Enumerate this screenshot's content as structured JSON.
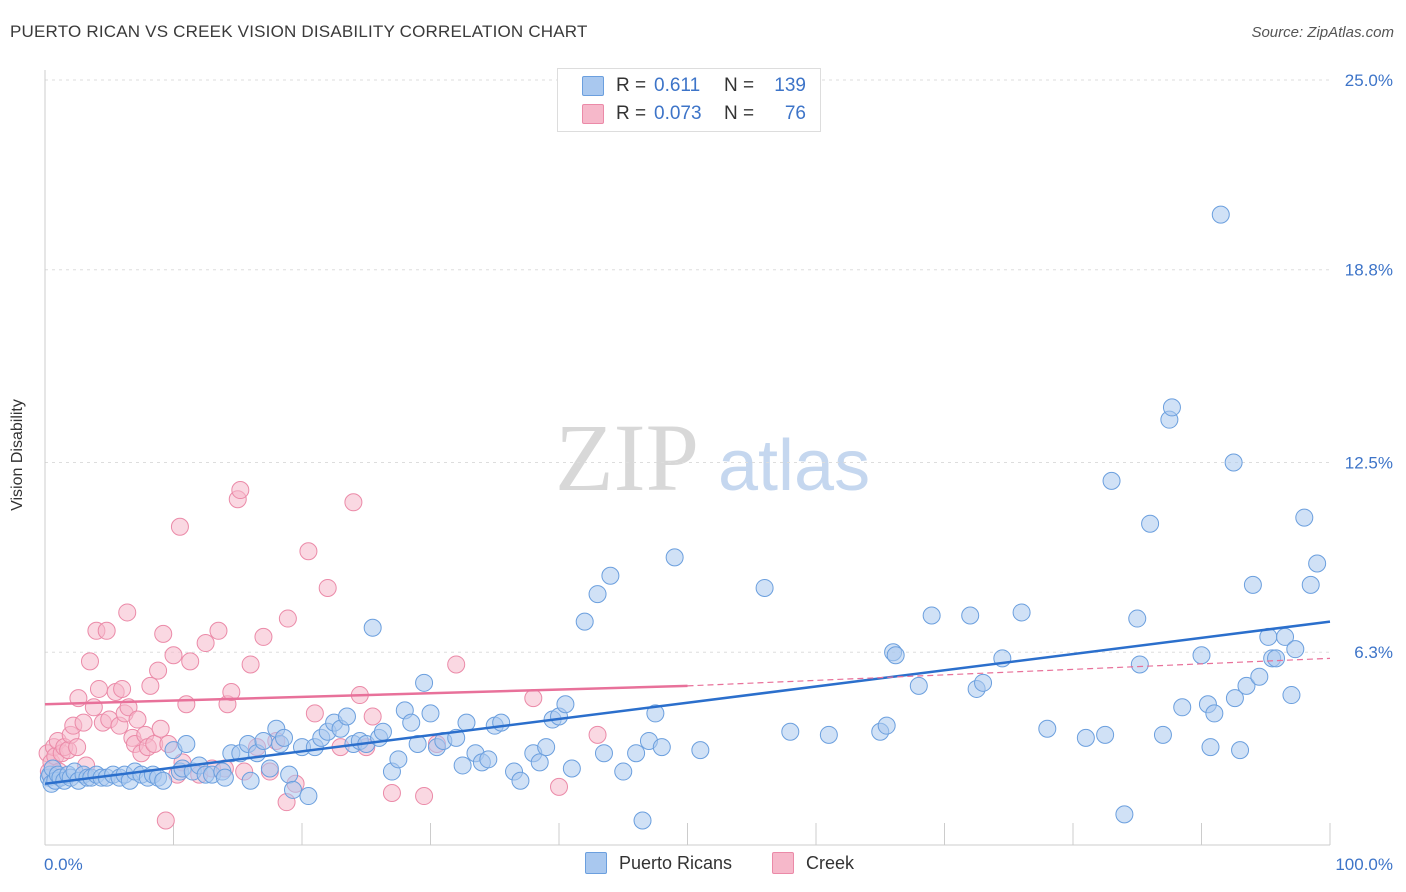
{
  "title": "PUERTO RICAN VS CREEK VISION DISABILITY CORRELATION CHART",
  "source": "Source: ZipAtlas.com",
  "watermark": {
    "zip": "ZIP",
    "atlas": "atlas"
  },
  "legend": {
    "rows": [
      {
        "r_label": "R =",
        "r_value": "0.611",
        "n_label": "N =",
        "n_value": "139"
      },
      {
        "r_label": "R =",
        "r_value": "0.073",
        "n_label": "N =",
        "n_value": "76"
      }
    ]
  },
  "bottom_legend": [
    "Puerto Ricans",
    "Creek"
  ],
  "colors": {
    "blue_fill": "#a9c8ef",
    "blue_stroke": "#6b9fde",
    "blue_line": "#2b6fcc",
    "pink_fill": "#f6b8ca",
    "pink_stroke": "#eb8aa8",
    "pink_line": "#e8719a",
    "axis_text": "#3d74c8"
  },
  "chart_data": {
    "type": "scatter",
    "ylabel": "Vision Disability",
    "xlim": [
      0,
      100
    ],
    "ylim": [
      0,
      25
    ],
    "x_tick_labels": [
      "0.0%",
      "100.0%"
    ],
    "y_ticks": [
      6.3,
      12.5,
      18.8,
      25.0
    ],
    "y_tick_labels": [
      "6.3%",
      "12.5%",
      "18.8%",
      "25.0%"
    ],
    "grid": "horizontal dashed",
    "series": [
      {
        "name": "Puerto Ricans",
        "color": "#6b9fde",
        "trend": {
          "x": [
            0,
            100
          ],
          "y": [
            2.0,
            7.3
          ]
        },
        "points": [
          [
            0.3,
            2.2
          ],
          [
            0.4,
            2.3
          ],
          [
            0.5,
            2.0
          ],
          [
            0.6,
            2.5
          ],
          [
            0.8,
            2.1
          ],
          [
            1.0,
            2.3
          ],
          [
            1.2,
            2.2
          ],
          [
            1.5,
            2.1
          ],
          [
            1.8,
            2.3
          ],
          [
            2.0,
            2.2
          ],
          [
            2.3,
            2.4
          ],
          [
            2.6,
            2.1
          ],
          [
            3.0,
            2.3
          ],
          [
            3.3,
            2.2
          ],
          [
            3.6,
            2.2
          ],
          [
            4.0,
            2.3
          ],
          [
            4.4,
            2.2
          ],
          [
            4.8,
            2.2
          ],
          [
            5.3,
            2.3
          ],
          [
            5.8,
            2.2
          ],
          [
            6.2,
            2.3
          ],
          [
            6.6,
            2.1
          ],
          [
            7.0,
            2.4
          ],
          [
            7.5,
            2.3
          ],
          [
            8.0,
            2.2
          ],
          [
            8.4,
            2.3
          ],
          [
            8.8,
            2.2
          ],
          [
            9.2,
            2.1
          ],
          [
            10.0,
            3.1
          ],
          [
            10.5,
            2.4
          ],
          [
            10.7,
            2.5
          ],
          [
            11.0,
            3.3
          ],
          [
            11.5,
            2.4
          ],
          [
            12.0,
            2.6
          ],
          [
            12.5,
            2.3
          ],
          [
            13.0,
            2.3
          ],
          [
            13.8,
            2.4
          ],
          [
            14.0,
            2.2
          ],
          [
            14.5,
            3.0
          ],
          [
            15.2,
            3.0
          ],
          [
            15.8,
            3.3
          ],
          [
            16.0,
            2.1
          ],
          [
            16.5,
            3.0
          ],
          [
            17.0,
            3.4
          ],
          [
            17.5,
            2.5
          ],
          [
            18.0,
            3.8
          ],
          [
            18.3,
            3.3
          ],
          [
            18.6,
            3.5
          ],
          [
            19.0,
            2.3
          ],
          [
            19.3,
            1.8
          ],
          [
            20.0,
            3.2
          ],
          [
            20.5,
            1.6
          ],
          [
            21.0,
            3.2
          ],
          [
            21.5,
            3.5
          ],
          [
            22.0,
            3.7
          ],
          [
            22.5,
            4.0
          ],
          [
            23.0,
            3.8
          ],
          [
            23.5,
            4.2
          ],
          [
            24.0,
            3.3
          ],
          [
            24.5,
            3.4
          ],
          [
            25.0,
            3.3
          ],
          [
            25.5,
            7.1
          ],
          [
            26.0,
            3.5
          ],
          [
            26.3,
            3.7
          ],
          [
            27.0,
            2.4
          ],
          [
            27.5,
            2.8
          ],
          [
            28.0,
            4.4
          ],
          [
            28.5,
            4.0
          ],
          [
            29.0,
            3.3
          ],
          [
            29.5,
            5.3
          ],
          [
            30.0,
            4.3
          ],
          [
            30.5,
            3.2
          ],
          [
            31.0,
            3.4
          ],
          [
            32.0,
            3.5
          ],
          [
            32.5,
            2.6
          ],
          [
            32.8,
            4.0
          ],
          [
            33.5,
            3.0
          ],
          [
            34.0,
            2.7
          ],
          [
            34.5,
            2.8
          ],
          [
            35.0,
            3.9
          ],
          [
            35.5,
            4.0
          ],
          [
            36.5,
            2.4
          ],
          [
            37.0,
            2.1
          ],
          [
            38.0,
            3.0
          ],
          [
            38.5,
            2.7
          ],
          [
            39.0,
            3.2
          ],
          [
            39.5,
            4.1
          ],
          [
            40.0,
            4.2
          ],
          [
            40.5,
            4.6
          ],
          [
            41.0,
            2.5
          ],
          [
            42.0,
            7.3
          ],
          [
            43.0,
            8.2
          ],
          [
            43.5,
            3.0
          ],
          [
            44.0,
            8.8
          ],
          [
            45.0,
            2.4
          ],
          [
            46.0,
            3.0
          ],
          [
            46.5,
            0.8
          ],
          [
            47.0,
            3.4
          ],
          [
            47.5,
            4.3
          ],
          [
            48.0,
            3.2
          ],
          [
            49.0,
            9.4
          ],
          [
            51.0,
            3.1
          ],
          [
            56.0,
            8.4
          ],
          [
            58.0,
            3.7
          ],
          [
            61.0,
            3.6
          ],
          [
            65.0,
            3.7
          ],
          [
            65.5,
            3.9
          ],
          [
            66.0,
            6.3
          ],
          [
            66.2,
            6.2
          ],
          [
            68.0,
            5.2
          ],
          [
            69.0,
            7.5
          ],
          [
            72.0,
            7.5
          ],
          [
            72.5,
            5.1
          ],
          [
            73.0,
            5.3
          ],
          [
            74.5,
            6.1
          ],
          [
            76.0,
            7.6
          ],
          [
            78.0,
            3.8
          ],
          [
            81.0,
            3.5
          ],
          [
            82.5,
            3.6
          ],
          [
            83.0,
            11.9
          ],
          [
            84.0,
            1.0
          ],
          [
            85.0,
            7.4
          ],
          [
            85.2,
            5.9
          ],
          [
            86.0,
            10.5
          ],
          [
            87.0,
            3.6
          ],
          [
            87.5,
            13.9
          ],
          [
            87.7,
            14.3
          ],
          [
            88.5,
            4.5
          ],
          [
            90.0,
            6.2
          ],
          [
            90.5,
            4.6
          ],
          [
            90.7,
            3.2
          ],
          [
            91.0,
            4.3
          ],
          [
            91.5,
            20.6
          ],
          [
            92.5,
            12.5
          ],
          [
            92.6,
            4.8
          ],
          [
            93.0,
            3.1
          ],
          [
            93.5,
            5.2
          ],
          [
            94.0,
            8.5
          ],
          [
            94.5,
            5.5
          ],
          [
            95.2,
            6.8
          ],
          [
            95.5,
            6.1
          ],
          [
            95.8,
            6.1
          ],
          [
            96.5,
            6.8
          ],
          [
            97.0,
            4.9
          ],
          [
            97.3,
            6.4
          ],
          [
            98.0,
            10.7
          ],
          [
            98.5,
            8.5
          ],
          [
            99.0,
            9.2
          ]
        ]
      },
      {
        "name": "Creek",
        "color": "#eb8aa8",
        "trend": {
          "x": [
            0,
            50
          ],
          "y": [
            4.6,
            5.2
          ]
        },
        "trend_dashed": {
          "x": [
            50,
            100
          ],
          "y": [
            5.2,
            6.1
          ]
        },
        "points": [
          [
            0.2,
            3.0
          ],
          [
            0.3,
            2.4
          ],
          [
            0.5,
            2.7
          ],
          [
            0.7,
            3.2
          ],
          [
            0.8,
            2.9
          ],
          [
            1.0,
            3.4
          ],
          [
            1.1,
            2.4
          ],
          [
            1.3,
            3.0
          ],
          [
            1.5,
            3.2
          ],
          [
            1.8,
            3.1
          ],
          [
            2.0,
            3.6
          ],
          [
            2.2,
            3.9
          ],
          [
            2.5,
            3.2
          ],
          [
            2.6,
            4.8
          ],
          [
            3.0,
            4.0
          ],
          [
            3.2,
            2.6
          ],
          [
            3.5,
            6.0
          ],
          [
            3.8,
            4.5
          ],
          [
            4.0,
            7.0
          ],
          [
            4.2,
            5.1
          ],
          [
            4.5,
            4.0
          ],
          [
            4.8,
            7.0
          ],
          [
            5.0,
            4.1
          ],
          [
            5.5,
            5.0
          ],
          [
            5.8,
            3.9
          ],
          [
            6.0,
            5.1
          ],
          [
            6.2,
            4.3
          ],
          [
            6.4,
            7.6
          ],
          [
            6.5,
            4.5
          ],
          [
            6.8,
            3.5
          ],
          [
            7.0,
            3.3
          ],
          [
            7.2,
            4.1
          ],
          [
            7.5,
            3.0
          ],
          [
            7.8,
            3.6
          ],
          [
            8.0,
            3.2
          ],
          [
            8.2,
            5.2
          ],
          [
            8.5,
            3.3
          ],
          [
            8.8,
            5.7
          ],
          [
            9.0,
            3.8
          ],
          [
            9.2,
            6.9
          ],
          [
            9.4,
            0.8
          ],
          [
            9.6,
            3.3
          ],
          [
            10.0,
            6.2
          ],
          [
            10.3,
            2.3
          ],
          [
            10.5,
            10.4
          ],
          [
            10.7,
            2.7
          ],
          [
            11.0,
            4.6
          ],
          [
            11.3,
            6.0
          ],
          [
            12.0,
            2.3
          ],
          [
            12.5,
            6.6
          ],
          [
            13.0,
            2.5
          ],
          [
            13.5,
            7.0
          ],
          [
            14.0,
            2.5
          ],
          [
            14.2,
            4.6
          ],
          [
            14.5,
            5.0
          ],
          [
            15.0,
            11.3
          ],
          [
            15.2,
            11.6
          ],
          [
            15.5,
            2.4
          ],
          [
            16.0,
            5.9
          ],
          [
            16.5,
            3.2
          ],
          [
            17.0,
            6.8
          ],
          [
            17.5,
            2.4
          ],
          [
            18.0,
            3.4
          ],
          [
            18.8,
            1.4
          ],
          [
            18.9,
            7.4
          ],
          [
            19.5,
            2.0
          ],
          [
            20.5,
            9.6
          ],
          [
            21.0,
            4.3
          ],
          [
            22.0,
            8.4
          ],
          [
            23.0,
            3.2
          ],
          [
            24.0,
            11.2
          ],
          [
            24.5,
            4.9
          ],
          [
            25.0,
            3.2
          ],
          [
            25.5,
            4.2
          ],
          [
            27.0,
            1.7
          ],
          [
            29.5,
            1.6
          ],
          [
            30.5,
            3.3
          ],
          [
            32.0,
            5.9
          ],
          [
            38.0,
            4.8
          ],
          [
            40.0,
            1.9
          ],
          [
            43.0,
            3.6
          ]
        ]
      }
    ]
  }
}
